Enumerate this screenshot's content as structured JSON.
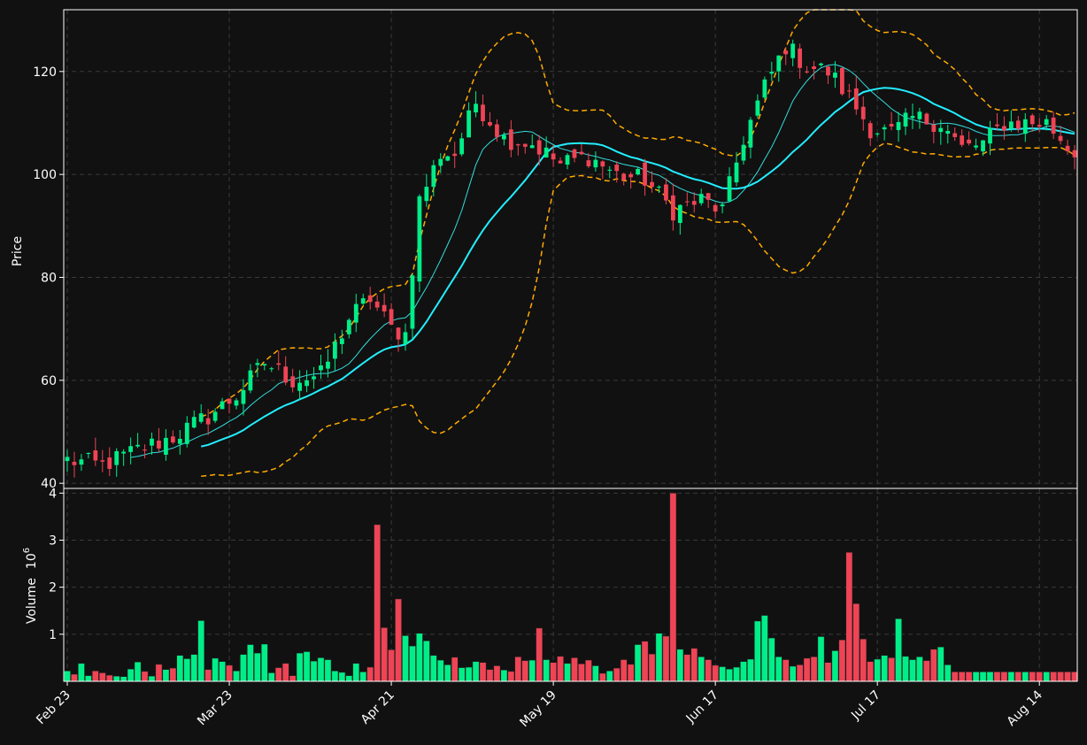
{
  "colors": {
    "background": "#111111",
    "axes": "#ffffff",
    "grid": "#3a3a3a",
    "up": "#00ee88",
    "down": "#ee4455",
    "ma_fast": "#33dddd",
    "ma_slow": "#22eeff",
    "bollinger": "#ffaa00"
  },
  "chart_data": {
    "type": "candlestick",
    "title": "",
    "price_axis": {
      "label": "Price",
      "ylim": [
        39,
        132
      ],
      "ticks": [
        40,
        60,
        80,
        100,
        120
      ]
    },
    "volume_axis": {
      "label": "Volume",
      "exponent_label": "10",
      "exponent": "6",
      "ylim": [
        0,
        4.1
      ],
      "ticks": [
        1,
        2,
        3,
        4
      ]
    },
    "x_axis": {
      "n_bars": 144,
      "tick_labels": [
        "Feb 23",
        "Mar 23",
        "Apr 21",
        "May 19",
        "Jun 17",
        "Jul 17",
        "Aug 14"
      ],
      "tick_positions": [
        0,
        23,
        46,
        69,
        92,
        115,
        138
      ]
    },
    "grid": true,
    "price_keypoints": [
      [
        0,
        44.5
      ],
      [
        5,
        43.5
      ],
      [
        10,
        46.5
      ],
      [
        15,
        49
      ],
      [
        20,
        53
      ],
      [
        24,
        57
      ],
      [
        28,
        63.5
      ],
      [
        32,
        60
      ],
      [
        36,
        61
      ],
      [
        40,
        72
      ],
      [
        43,
        76
      ],
      [
        46,
        70
      ],
      [
        48,
        69
      ],
      [
        50,
        95
      ],
      [
        53,
        104
      ],
      [
        55,
        104
      ],
      [
        58,
        114
      ],
      [
        62,
        107
      ],
      [
        66,
        106
      ],
      [
        70,
        102
      ],
      [
        74,
        103.5
      ],
      [
        78,
        100
      ],
      [
        82,
        99
      ],
      [
        86,
        93
      ],
      [
        90,
        95
      ],
      [
        93,
        93
      ],
      [
        96,
        107
      ],
      [
        99,
        117
      ],
      [
        102,
        125
      ],
      [
        105,
        121
      ],
      [
        108,
        120
      ],
      [
        111,
        115
      ],
      [
        114,
        109
      ],
      [
        117,
        108
      ],
      [
        120,
        111
      ],
      [
        124,
        110
      ],
      [
        127,
        105
      ],
      [
        130,
        106
      ],
      [
        133,
        110
      ],
      [
        136,
        110
      ],
      [
        139,
        110
      ],
      [
        143,
        104
      ]
    ],
    "volume_series_millions": [
      0.22,
      0.15,
      0.38,
      0.12,
      0.22,
      0.18,
      0.13,
      0.11,
      0.1,
      0.26,
      0.41,
      0.21,
      0.11,
      0.36,
      0.25,
      0.28,
      0.55,
      0.48,
      0.57,
      1.29,
      0.25,
      0.49,
      0.42,
      0.34,
      0.22,
      0.57,
      0.78,
      0.6,
      0.79,
      0.18,
      0.29,
      0.38,
      0.12,
      0.6,
      0.63,
      0.43,
      0.5,
      0.46,
      0.22,
      0.19,
      0.12,
      0.38,
      0.2,
      0.3,
      3.33,
      1.14,
      0.67,
      1.75,
      0.97,
      0.75,
      1.02,
      0.86,
      0.55,
      0.45,
      0.35,
      0.51,
      0.29,
      0.3,
      0.42,
      0.4,
      0.25,
      0.33,
      0.24,
      0.21,
      0.52,
      0.44,
      0.45,
      1.13,
      0.46,
      0.4,
      0.53,
      0.38,
      0.5,
      0.37,
      0.45,
      0.33,
      0.17,
      0.22,
      0.28,
      0.46,
      0.36,
      0.78,
      0.85,
      0.58,
      1.02,
      0.96,
      4.0,
      0.68,
      0.57,
      0.7,
      0.52,
      0.46,
      0.34,
      0.31,
      0.26,
      0.3,
      0.42,
      0.47,
      1.28,
      1.4,
      0.92,
      0.52,
      0.46,
      0.32,
      0.35,
      0.49,
      0.52,
      0.95,
      0.4,
      0.65,
      0.88,
      2.74,
      1.65,
      0.9,
      0.42,
      0.47,
      0.55,
      0.5,
      1.33,
      0.53,
      0.46,
      0.52,
      0.44,
      0.68,
      0.73,
      0.35,
      0.2,
      0.2,
      0.2,
      0.2,
      0.2,
      0.2,
      0.2,
      0.2,
      0.2,
      0.2,
      0.2,
      0.2,
      0.2,
      0.2,
      0.2,
      0.2,
      0.2,
      0.2
    ],
    "ma_fast_period": 10,
    "ma_slow_period": 20,
    "bollinger_period": 20,
    "bollinger_stddev": 2
  }
}
